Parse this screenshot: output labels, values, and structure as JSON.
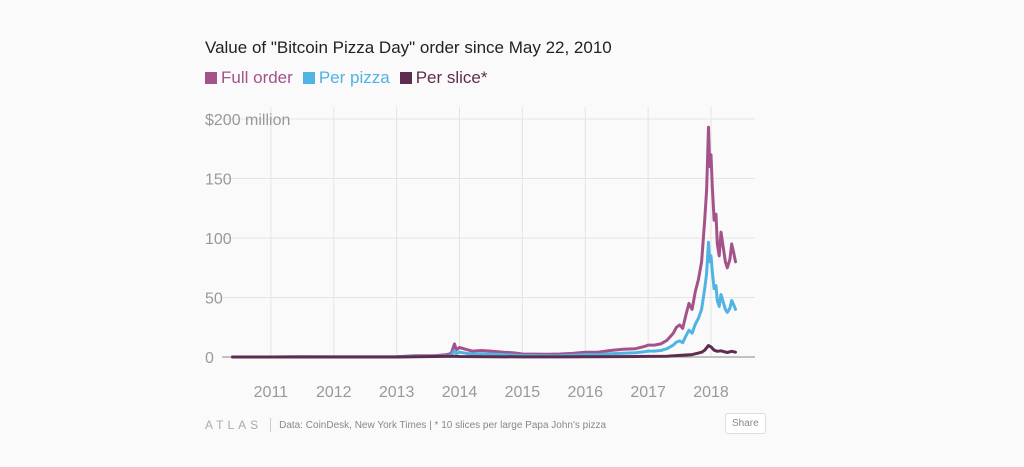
{
  "chart_data": {
    "type": "line",
    "title": "Value of \"Bitcoin Pizza Day\" order since May 22, 2010",
    "ylabel": "",
    "xlabel": "",
    "ylim": [
      0,
      200
    ],
    "xlim": [
      2010.35,
      2018.7
    ],
    "y_ticks": [
      0,
      50,
      100,
      150,
      200
    ],
    "y_tick_labels": [
      "0",
      "50",
      "100",
      "150",
      "$200 million"
    ],
    "x_ticks": [
      2011,
      2012,
      2013,
      2014,
      2015,
      2016,
      2017,
      2018
    ],
    "x_tick_labels": [
      "2011",
      "2012",
      "2013",
      "2014",
      "2015",
      "2016",
      "2017",
      "2018"
    ],
    "grid": true,
    "legend_position": "top-left",
    "series": [
      {
        "name": "Full order",
        "color": "#a3538a",
        "points": [
          [
            2010.39,
            0.0
          ],
          [
            2011.0,
            0.0
          ],
          [
            2011.45,
            0.2
          ],
          [
            2012.0,
            0.1
          ],
          [
            2012.5,
            0.1
          ],
          [
            2013.0,
            0.2
          ],
          [
            2013.3,
            1.0
          ],
          [
            2013.6,
            1.0
          ],
          [
            2013.8,
            2.0
          ],
          [
            2013.87,
            3.0
          ],
          [
            2013.92,
            11.0
          ],
          [
            2013.95,
            6.0
          ],
          [
            2014.0,
            8.0
          ],
          [
            2014.1,
            6.5
          ],
          [
            2014.2,
            5.0
          ],
          [
            2014.35,
            5.5
          ],
          [
            2014.5,
            5.0
          ],
          [
            2014.7,
            4.0
          ],
          [
            2014.85,
            3.5
          ],
          [
            2015.0,
            2.5
          ],
          [
            2015.2,
            2.4
          ],
          [
            2015.4,
            2.3
          ],
          [
            2015.6,
            2.5
          ],
          [
            2015.8,
            3.0
          ],
          [
            2016.0,
            4.0
          ],
          [
            2016.2,
            4.0
          ],
          [
            2016.4,
            5.5
          ],
          [
            2016.6,
            6.5
          ],
          [
            2016.8,
            7.0
          ],
          [
            2016.95,
            9.0
          ],
          [
            2017.0,
            10.0
          ],
          [
            2017.1,
            10.0
          ],
          [
            2017.2,
            11.0
          ],
          [
            2017.3,
            14.0
          ],
          [
            2017.4,
            20.0
          ],
          [
            2017.45,
            25.0
          ],
          [
            2017.5,
            27.0
          ],
          [
            2017.55,
            24.0
          ],
          [
            2017.6,
            35.0
          ],
          [
            2017.65,
            45.0
          ],
          [
            2017.7,
            40.0
          ],
          [
            2017.75,
            55.0
          ],
          [
            2017.8,
            65.0
          ],
          [
            2017.85,
            80.0
          ],
          [
            2017.9,
            115.0
          ],
          [
            2017.93,
            140.0
          ],
          [
            2017.96,
            193.0
          ],
          [
            2017.98,
            160.0
          ],
          [
            2018.0,
            170.0
          ],
          [
            2018.02,
            145.0
          ],
          [
            2018.05,
            115.0
          ],
          [
            2018.08,
            120.0
          ],
          [
            2018.1,
            95.0
          ],
          [
            2018.13,
            85.0
          ],
          [
            2018.16,
            105.0
          ],
          [
            2018.2,
            90.0
          ],
          [
            2018.23,
            80.0
          ],
          [
            2018.26,
            75.0
          ],
          [
            2018.3,
            82.0
          ],
          [
            2018.33,
            95.0
          ],
          [
            2018.36,
            88.0
          ],
          [
            2018.39,
            80.0
          ]
        ]
      },
      {
        "name": "Per pizza",
        "color": "#4fb3e3",
        "points": [
          [
            2010.39,
            0.0
          ],
          [
            2011.0,
            0.0
          ],
          [
            2011.45,
            0.1
          ],
          [
            2012.0,
            0.05
          ],
          [
            2012.5,
            0.05
          ],
          [
            2013.0,
            0.1
          ],
          [
            2013.3,
            0.5
          ],
          [
            2013.6,
            0.5
          ],
          [
            2013.8,
            1.0
          ],
          [
            2013.87,
            1.5
          ],
          [
            2013.92,
            5.5
          ],
          [
            2013.95,
            3.0
          ],
          [
            2014.0,
            4.0
          ],
          [
            2014.1,
            3.2
          ],
          [
            2014.2,
            2.5
          ],
          [
            2014.35,
            2.7
          ],
          [
            2014.5,
            2.5
          ],
          [
            2014.7,
            2.0
          ],
          [
            2014.85,
            1.7
          ],
          [
            2015.0,
            1.2
          ],
          [
            2015.2,
            1.2
          ],
          [
            2015.4,
            1.1
          ],
          [
            2015.6,
            1.2
          ],
          [
            2015.8,
            1.5
          ],
          [
            2016.0,
            2.0
          ],
          [
            2016.2,
            2.0
          ],
          [
            2016.4,
            2.7
          ],
          [
            2016.6,
            3.2
          ],
          [
            2016.8,
            3.5
          ],
          [
            2016.95,
            4.5
          ],
          [
            2017.0,
            5.0
          ],
          [
            2017.1,
            5.0
          ],
          [
            2017.2,
            5.5
          ],
          [
            2017.3,
            7.0
          ],
          [
            2017.4,
            10.0
          ],
          [
            2017.45,
            12.5
          ],
          [
            2017.5,
            13.5
          ],
          [
            2017.55,
            12.0
          ],
          [
            2017.6,
            17.5
          ],
          [
            2017.65,
            22.5
          ],
          [
            2017.7,
            20.0
          ],
          [
            2017.75,
            27.5
          ],
          [
            2017.8,
            32.5
          ],
          [
            2017.85,
            40.0
          ],
          [
            2017.9,
            57.5
          ],
          [
            2017.93,
            70.0
          ],
          [
            2017.96,
            96.5
          ],
          [
            2017.98,
            80.0
          ],
          [
            2018.0,
            85.0
          ],
          [
            2018.02,
            72.5
          ],
          [
            2018.05,
            57.5
          ],
          [
            2018.08,
            60.0
          ],
          [
            2018.1,
            47.5
          ],
          [
            2018.13,
            42.5
          ],
          [
            2018.16,
            52.5
          ],
          [
            2018.2,
            45.0
          ],
          [
            2018.23,
            40.0
          ],
          [
            2018.26,
            37.5
          ],
          [
            2018.3,
            41.0
          ],
          [
            2018.33,
            47.5
          ],
          [
            2018.36,
            44.0
          ],
          [
            2018.39,
            40.0
          ]
        ]
      },
      {
        "name": "Per slice*",
        "color": "#5e2c4f",
        "points": [
          [
            2010.39,
            0.0
          ],
          [
            2011.0,
            0.0
          ],
          [
            2012.0,
            0.0
          ],
          [
            2013.0,
            0.0
          ],
          [
            2013.92,
            0.55
          ],
          [
            2014.0,
            0.4
          ],
          [
            2014.5,
            0.25
          ],
          [
            2015.0,
            0.12
          ],
          [
            2015.5,
            0.12
          ],
          [
            2016.0,
            0.2
          ],
          [
            2016.5,
            0.3
          ],
          [
            2017.0,
            0.5
          ],
          [
            2017.3,
            0.7
          ],
          [
            2017.5,
            1.35
          ],
          [
            2017.7,
            2.0
          ],
          [
            2017.8,
            3.25
          ],
          [
            2017.85,
            4.0
          ],
          [
            2017.9,
            5.75
          ],
          [
            2017.96,
            9.65
          ],
          [
            2018.0,
            8.5
          ],
          [
            2018.05,
            5.75
          ],
          [
            2018.1,
            4.75
          ],
          [
            2018.16,
            5.25
          ],
          [
            2018.2,
            4.5
          ],
          [
            2018.26,
            3.75
          ],
          [
            2018.33,
            4.75
          ],
          [
            2018.39,
            4.0
          ]
        ]
      }
    ]
  },
  "footer": {
    "brand": "ATLAS",
    "source": "Data:  CoinDesk, New York Times | * 10 slices per large Papa John's pizza"
  },
  "share_label": "Share"
}
